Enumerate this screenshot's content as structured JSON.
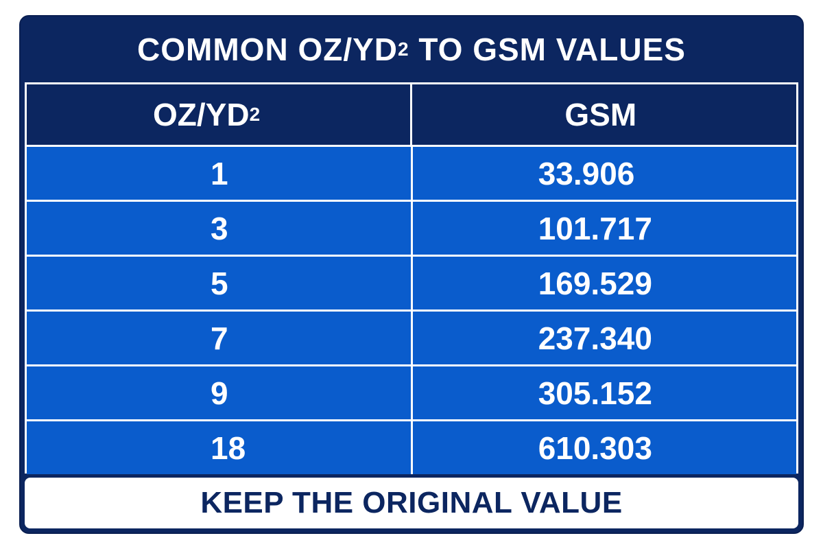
{
  "title": {
    "main": "COMMON OZ/YD",
    "sup": "2",
    "rest": " TO GSM VALUES"
  },
  "table": {
    "headers": {
      "left_main": "OZ/YD",
      "left_sup": "2",
      "right": "GSM"
    },
    "rows": [
      {
        "oz": "1",
        "gsm": "33.906"
      },
      {
        "oz": "3",
        "gsm": "101.717"
      },
      {
        "oz": "5",
        "gsm": "169.529"
      },
      {
        "oz": "7",
        "gsm": "237.340"
      },
      {
        "oz": "9",
        "gsm": "305.152"
      },
      {
        "oz": "18",
        "gsm": "610.303"
      }
    ]
  },
  "footer": {
    "text": "KEEP THE ORIGINAL VALUE"
  },
  "colors": {
    "navy": "#0c2660",
    "row_blue": "#0a5ccc",
    "white": "#ffffff"
  }
}
